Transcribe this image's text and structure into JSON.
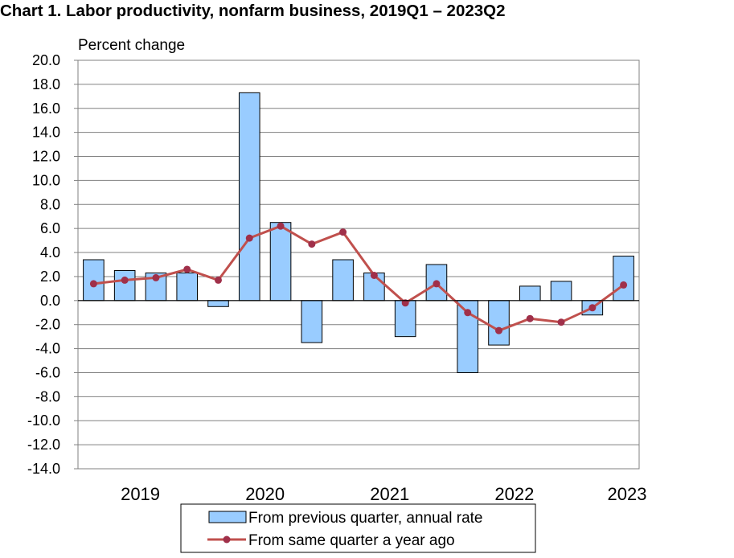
{
  "chart_data": {
    "type": "bar",
    "title": "Chart  1. Labor productivity, nonfarm business, 2019Q1 – 2023Q2",
    "ylabel": "Percent change",
    "xlabel": "",
    "ylim": [
      -14,
      20
    ],
    "y_ticks": [
      "20.0",
      "18.0",
      "16.0",
      "14.0",
      "12.0",
      "10.0",
      "8.0",
      "6.0",
      "4.0",
      "2.0",
      "0.0",
      "-2.0",
      "-4.0",
      "-6.0",
      "-8.0",
      "-10.0",
      "-12.0",
      "-14.0"
    ],
    "year_labels": [
      "2019",
      "2020",
      "2021",
      "2022",
      "2023"
    ],
    "categories": [
      "2019Q1",
      "2019Q2",
      "2019Q3",
      "2019Q4",
      "2020Q1",
      "2020Q2",
      "2020Q3",
      "2020Q4",
      "2021Q1",
      "2021Q2",
      "2021Q3",
      "2021Q4",
      "2022Q1",
      "2022Q2",
      "2022Q3",
      "2022Q4",
      "2023Q1",
      "2023Q2"
    ],
    "grid": true,
    "legend_position": "bottom-center",
    "series": [
      {
        "name": "From previous quarter, annual rate",
        "type": "bar",
        "color": "#99ccff",
        "values": [
          3.4,
          2.5,
          2.3,
          2.3,
          -0.5,
          17.3,
          6.5,
          -3.5,
          3.4,
          2.3,
          -3.0,
          3.0,
          -6.0,
          -3.7,
          1.2,
          1.6,
          -1.2,
          3.7
        ]
      },
      {
        "name": "From same quarter a year ago",
        "type": "line",
        "color": "#c0504d",
        "values": [
          1.4,
          1.7,
          1.9,
          2.6,
          1.7,
          5.2,
          6.2,
          4.7,
          5.7,
          2.1,
          -0.2,
          1.4,
          -1.0,
          -2.5,
          -1.5,
          -1.8,
          -0.6,
          1.3
        ]
      }
    ]
  }
}
